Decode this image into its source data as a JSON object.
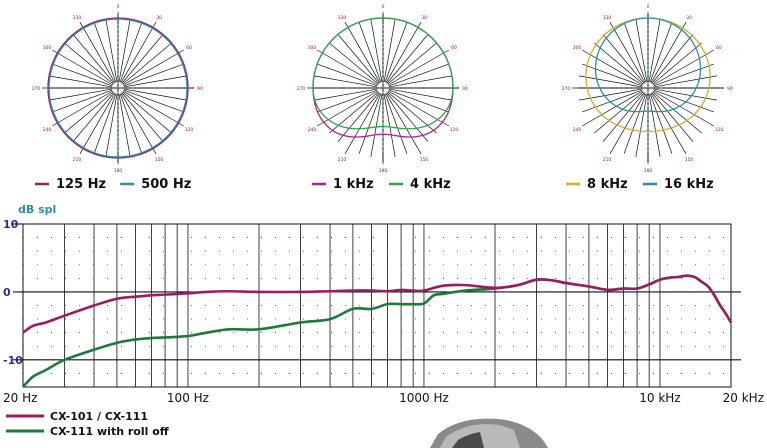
{
  "chart_data": [
    {
      "type": "polar",
      "angle_labels": [
        "0",
        "30",
        "60",
        "90",
        "120",
        "150",
        "180",
        "210",
        "240",
        "270",
        "300",
        "330"
      ],
      "series": [
        {
          "name": "125 Hz",
          "color": "#9c1e62",
          "pattern": "omnidirectional"
        },
        {
          "name": "500 Hz",
          "color": "#2a8fa3",
          "pattern": "omnidirectional"
        }
      ]
    },
    {
      "type": "polar",
      "angle_labels": [
        "0",
        "30",
        "60",
        "90",
        "120",
        "150",
        "180",
        "210",
        "240",
        "270",
        "300",
        "330"
      ],
      "series": [
        {
          "name": "1 kHz",
          "color": "#b0208a",
          "pattern": "omni, slight rear dip"
        },
        {
          "name": "4 kHz",
          "color": "#2ea44f",
          "pattern": "omni, rear attenuation"
        }
      ]
    },
    {
      "type": "polar",
      "angle_labels": [
        "0",
        "30",
        "60",
        "90",
        "120",
        "150",
        "180",
        "210",
        "240",
        "270",
        "300",
        "330"
      ],
      "series": [
        {
          "name": "8 kHz",
          "color": "#c9b22a",
          "pattern": "wide directional"
        },
        {
          "name": "16 kHz",
          "color": "#2a8fa3",
          "pattern": "narrow directional"
        }
      ]
    },
    {
      "type": "line",
      "ylabel": "dB spl",
      "yticks": [
        "10",
        "0",
        "-10"
      ],
      "ylim": [
        -14,
        10
      ],
      "xscale": "log",
      "xlim": [
        20,
        20000
      ],
      "xticks": [
        "20 Hz",
        "100 Hz",
        "1000 Hz",
        "10 kHz",
        "20 kHz"
      ],
      "series": [
        {
          "name": "CX-101 / CX-111",
          "color": "#9b1d5f",
          "x": [
            20,
            22,
            25,
            30,
            40,
            50,
            60,
            70,
            80,
            100,
            120,
            150,
            200,
            300,
            400,
            500,
            600,
            700,
            800,
            900,
            1000,
            1200,
            1500,
            2000,
            2500,
            3000,
            3500,
            4000,
            5000,
            6000,
            7000,
            8000,
            9000,
            10000,
            11000,
            12000,
            13000,
            14000,
            15000,
            16000,
            17000,
            18000,
            19000,
            20000
          ],
          "y": [
            -6,
            -5,
            -4.5,
            -3.5,
            -2,
            -1,
            -0.7,
            -0.5,
            -0.4,
            -0.2,
            0,
            0.1,
            0,
            0,
            0.1,
            0.2,
            0.2,
            0.1,
            0.3,
            0.2,
            0.2,
            0.9,
            1.0,
            0.6,
            1.0,
            1.8,
            1.7,
            1.3,
            0.8,
            0.3,
            0.5,
            0.5,
            1.1,
            1.8,
            2.1,
            2.2,
            2.4,
            2.2,
            1.5,
            0.8,
            -0.5,
            -2,
            -3.2,
            -4.5
          ]
        },
        {
          "name": "CX-111 with roll off",
          "color": "#1d7a3c",
          "x": [
            20,
            22,
            25,
            30,
            40,
            50,
            60,
            70,
            80,
            100,
            120,
            150,
            200,
            300,
            400,
            500,
            600,
            700,
            800,
            900,
            1000,
            1100,
            1200,
            1500,
            2000,
            2500,
            3000,
            3500,
            4000,
            5000,
            6000,
            7000,
            8000,
            9000,
            10000,
            11000,
            12000,
            13000,
            14000,
            15000,
            16000,
            17000,
            18000,
            19000,
            20000
          ],
          "y": [
            -14,
            -12.5,
            -11.5,
            -10,
            -8.5,
            -7.5,
            -7,
            -6.8,
            -6.7,
            -6.5,
            -6,
            -5.5,
            -5.5,
            -4.5,
            -4,
            -2.5,
            -2.5,
            -1.8,
            -1.8,
            -1.8,
            -1.7,
            -0.5,
            -0.3,
            0.2,
            0.5,
            1.0,
            1.8,
            1.7,
            1.3,
            0.8,
            0.3,
            0.5,
            0.5,
            1.1,
            1.8,
            2.1,
            2.2,
            2.4,
            2.2,
            1.5,
            0.8,
            -0.5,
            -2,
            -3.2,
            -4.5
          ]
        }
      ]
    }
  ]
}
